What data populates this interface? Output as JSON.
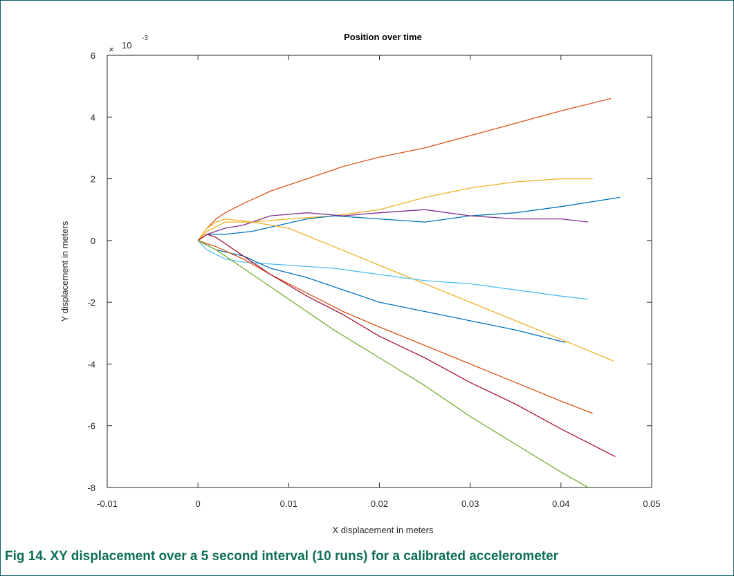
{
  "caption": "Fig 14.   XY displacement over a 5 second interval (10 runs) for a calibrated accelerometer",
  "chart_data": {
    "type": "line",
    "title": "Position over time",
    "xlabel": "X displacement in meters",
    "ylabel": "Y displacement in meters",
    "xlim": [
      -0.01,
      0.05
    ],
    "ylim": [
      -0.008,
      0.006
    ],
    "xticks": [
      -0.01,
      0,
      0.01,
      0.02,
      0.03,
      0.04,
      0.05
    ],
    "xtick_labels": [
      "-0.01",
      "0",
      "0.01",
      "0.02",
      "0.03",
      "0.04",
      "0.05"
    ],
    "yticks": [
      -8,
      -6,
      -4,
      -2,
      0,
      2,
      4,
      6
    ],
    "ytick_labels": [
      "-8",
      "-6",
      "-4",
      "-2",
      "0",
      "2",
      "4",
      "6"
    ],
    "y_exponent_base": "10",
    "y_exponent": "-3",
    "grid": false,
    "series": [
      {
        "color": "#D95319",
        "points": [
          [
            0,
            0
          ],
          [
            0.001,
            0.0004
          ],
          [
            0.002,
            0.0007
          ],
          [
            0.003,
            0.0009
          ],
          [
            0.005,
            0.0012
          ],
          [
            0.008,
            0.0016
          ],
          [
            0.012,
            0.002
          ],
          [
            0.016,
            0.0024
          ],
          [
            0.02,
            0.0027
          ],
          [
            0.025,
            0.003
          ],
          [
            0.03,
            0.0034
          ],
          [
            0.035,
            0.0038
          ],
          [
            0.04,
            0.0042
          ],
          [
            0.0455,
            0.0046
          ]
        ]
      },
      {
        "color": "#EDB120",
        "points": [
          [
            0,
            0
          ],
          [
            0.001,
            0.0004
          ],
          [
            0.002,
            0.0006
          ],
          [
            0.003,
            0.0007
          ],
          [
            0.006,
            0.0006
          ],
          [
            0.01,
            0.0007
          ],
          [
            0.015,
            0.0008
          ],
          [
            0.02,
            0.001
          ],
          [
            0.025,
            0.0014
          ],
          [
            0.03,
            0.0017
          ],
          [
            0.035,
            0.0019
          ],
          [
            0.04,
            0.002
          ],
          [
            0.0435,
            0.002
          ]
        ]
      },
      {
        "color": "#0072BD",
        "points": [
          [
            0,
            0
          ],
          [
            0.001,
            0.0002
          ],
          [
            0.003,
            0.0002
          ],
          [
            0.006,
            0.0003
          ],
          [
            0.009,
            0.0005
          ],
          [
            0.012,
            0.0007
          ],
          [
            0.015,
            0.0008
          ],
          [
            0.02,
            0.0007
          ],
          [
            0.025,
            0.0006
          ],
          [
            0.03,
            0.0008
          ],
          [
            0.035,
            0.0009
          ],
          [
            0.04,
            0.0011
          ],
          [
            0.0465,
            0.0014
          ]
        ]
      },
      {
        "color": "#7E2F8E",
        "points": [
          [
            0,
            0
          ],
          [
            0.001,
            0.0002
          ],
          [
            0.003,
            0.0004
          ],
          [
            0.005,
            0.0005
          ],
          [
            0.008,
            0.0008
          ],
          [
            0.012,
            0.0009
          ],
          [
            0.016,
            0.0008
          ],
          [
            0.02,
            0.0009
          ],
          [
            0.025,
            0.001
          ],
          [
            0.03,
            0.0008
          ],
          [
            0.035,
            0.0007
          ],
          [
            0.04,
            0.0007
          ],
          [
            0.043,
            0.0006
          ]
        ]
      },
      {
        "color": "#EDB120",
        "points": [
          [
            0,
            0
          ],
          [
            0.001,
            0.0003
          ],
          [
            0.003,
            0.0006
          ],
          [
            0.006,
            0.0006
          ],
          [
            0.01,
            0.0004
          ],
          [
            0.015,
            -0.0002
          ],
          [
            0.02,
            -0.0008
          ],
          [
            0.025,
            -0.0014
          ],
          [
            0.03,
            -0.002
          ],
          [
            0.035,
            -0.0026
          ],
          [
            0.04,
            -0.0032
          ],
          [
            0.0458,
            -0.0039
          ]
        ]
      },
      {
        "color": "#4DBEEE",
        "points": [
          [
            0,
            0
          ],
          [
            0.001,
            -0.0003
          ],
          [
            0.003,
            -0.0006
          ],
          [
            0.005,
            -0.0007
          ],
          [
            0.01,
            -0.0008
          ],
          [
            0.015,
            -0.0009
          ],
          [
            0.02,
            -0.0011
          ],
          [
            0.025,
            -0.0013
          ],
          [
            0.03,
            -0.0014
          ],
          [
            0.035,
            -0.0016
          ],
          [
            0.04,
            -0.0018
          ],
          [
            0.043,
            -0.0019
          ]
        ]
      },
      {
        "color": "#0072BD",
        "points": [
          [
            0,
            0
          ],
          [
            0.002,
            -0.0003
          ],
          [
            0.005,
            -0.0005
          ],
          [
            0.008,
            -0.0009
          ],
          [
            0.012,
            -0.0012
          ],
          [
            0.016,
            -0.0016
          ],
          [
            0.02,
            -0.002
          ],
          [
            0.025,
            -0.0023
          ],
          [
            0.03,
            -0.0026
          ],
          [
            0.035,
            -0.0029
          ],
          [
            0.0405,
            -0.0033
          ]
        ]
      },
      {
        "color": "#D95319",
        "points": [
          [
            0,
            0
          ],
          [
            0.002,
            -0.0002
          ],
          [
            0.005,
            -0.0006
          ],
          [
            0.008,
            -0.0011
          ],
          [
            0.012,
            -0.0017
          ],
          [
            0.016,
            -0.0023
          ],
          [
            0.02,
            -0.0028
          ],
          [
            0.025,
            -0.0034
          ],
          [
            0.03,
            -0.004
          ],
          [
            0.035,
            -0.0046
          ],
          [
            0.04,
            -0.0052
          ],
          [
            0.0435,
            -0.0056
          ]
        ]
      },
      {
        "color": "#A2142F",
        "points": [
          [
            0,
            0
          ],
          [
            0.001,
            0.0002
          ],
          [
            0.002,
            0.0001
          ],
          [
            0.004,
            -0.0003
          ],
          [
            0.008,
            -0.0011
          ],
          [
            0.012,
            -0.0018
          ],
          [
            0.016,
            -0.0024
          ],
          [
            0.02,
            -0.0031
          ],
          [
            0.025,
            -0.0038
          ],
          [
            0.03,
            -0.0046
          ],
          [
            0.035,
            -0.0053
          ],
          [
            0.04,
            -0.0061
          ],
          [
            0.046,
            -0.007
          ]
        ]
      },
      {
        "color": "#77AC30",
        "points": [
          [
            0,
            0
          ],
          [
            0.002,
            -0.0003
          ],
          [
            0.004,
            -0.0007
          ],
          [
            0.007,
            -0.0013
          ],
          [
            0.01,
            -0.0019
          ],
          [
            0.015,
            -0.0029
          ],
          [
            0.02,
            -0.0038
          ],
          [
            0.025,
            -0.0047
          ],
          [
            0.03,
            -0.0057
          ],
          [
            0.035,
            -0.0066
          ],
          [
            0.04,
            -0.0075
          ],
          [
            0.043,
            -0.008
          ]
        ]
      }
    ]
  }
}
